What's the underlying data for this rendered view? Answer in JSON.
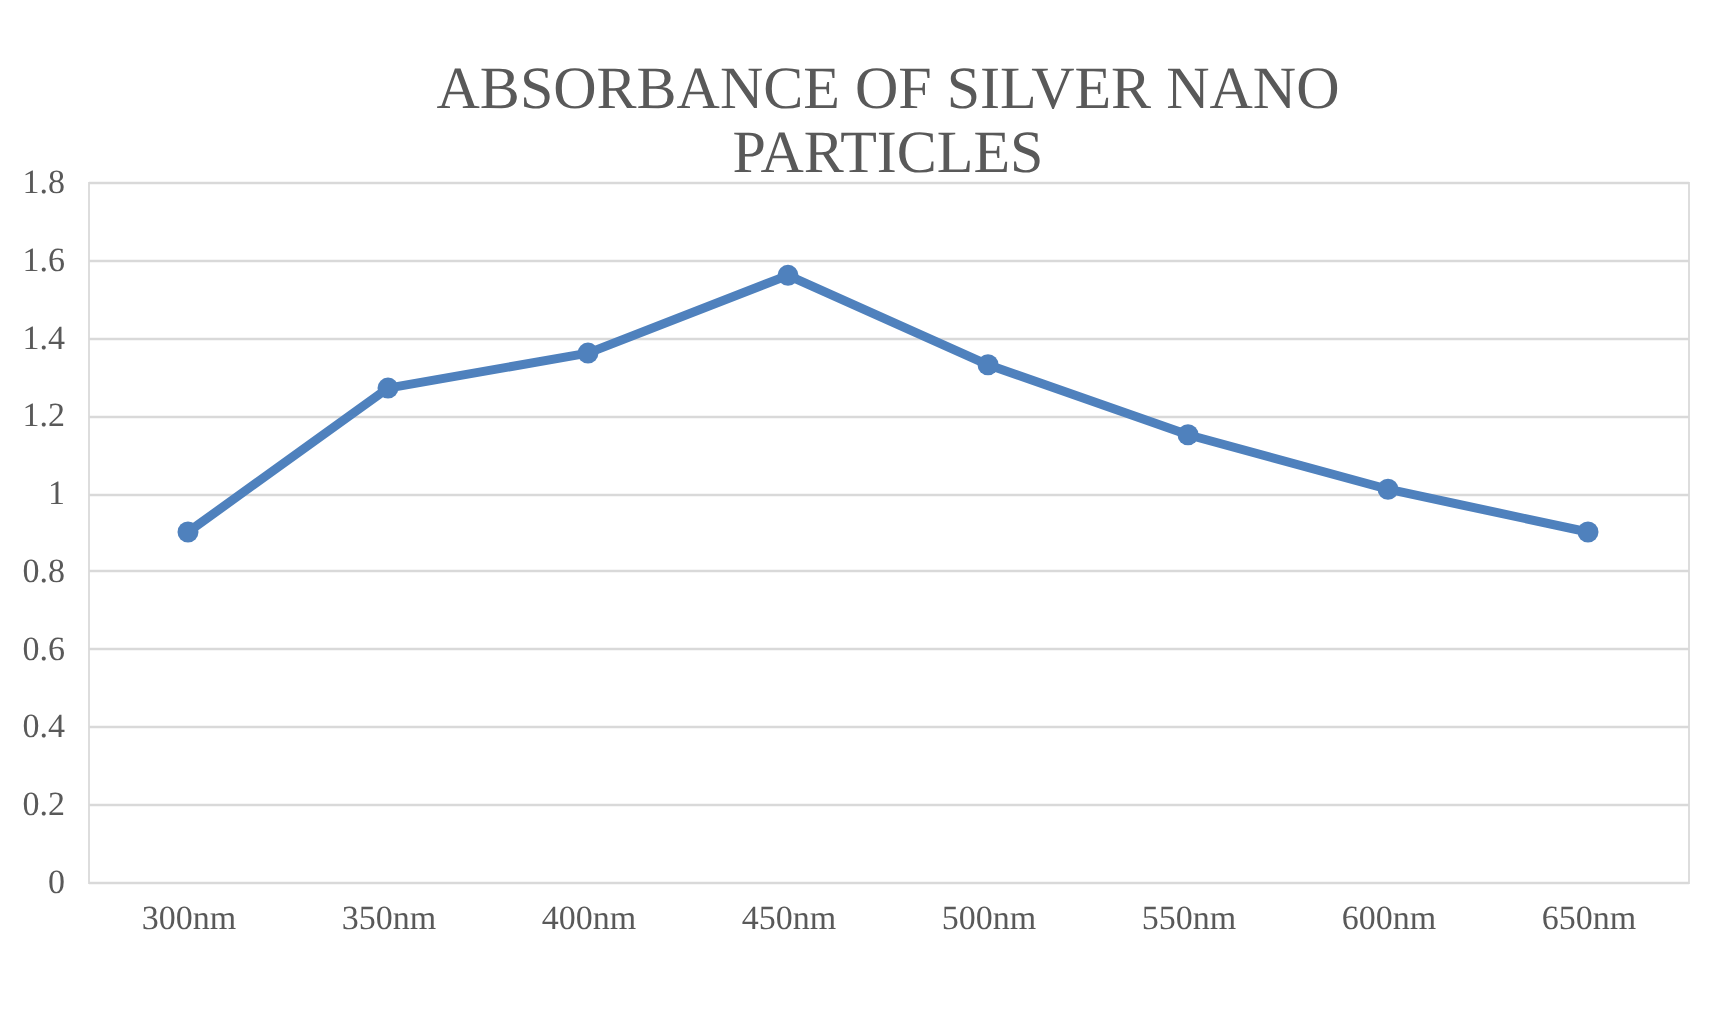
{
  "chart_data": {
    "type": "line",
    "title": "ABSORBANCE OF SILVER NANO PARTICLES",
    "categories": [
      "300nm",
      "350nm",
      "400nm",
      "450nm",
      "500nm",
      "550nm",
      "600nm",
      "650nm"
    ],
    "series": [
      {
        "color": "#4f81bd",
        "values": [
          0.9,
          1.27,
          1.36,
          1.56,
          1.33,
          1.15,
          1.01,
          0.9
        ]
      }
    ],
    "ylim": [
      0,
      1.8
    ],
    "yticks": [
      0,
      0.2,
      0.4,
      0.6,
      0.8,
      1,
      1.2,
      1.4,
      1.6,
      1.8
    ],
    "grid": "y",
    "marker": "circle",
    "line_style": "solid"
  }
}
